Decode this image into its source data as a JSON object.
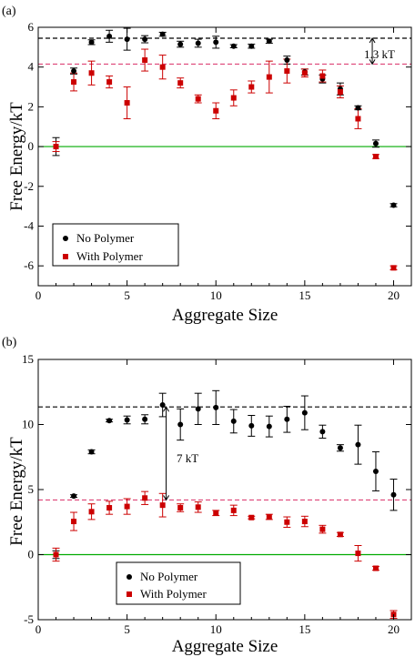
{
  "chart_data": [
    {
      "type": "scatter",
      "panel_label": "(a)",
      "xlabel": "Aggregate Size",
      "ylabel": "Free Energy/kT",
      "xlim": [
        0,
        21
      ],
      "ylim": [
        -7,
        6
      ],
      "xticks": [
        0,
        5,
        10,
        15,
        20
      ],
      "yticks": [
        -6,
        -4,
        -2,
        0,
        2,
        4,
        6
      ],
      "legend_position": "bottom-left",
      "series": [
        {
          "name": "No Polymer",
          "color": "#000000",
          "marker": "circle",
          "x": [
            1,
            2,
            3,
            4,
            5,
            6,
            7,
            8,
            9,
            10,
            11,
            12,
            13,
            14,
            15,
            16,
            17,
            18,
            19,
            20
          ],
          "y": [
            0.0,
            3.8,
            5.25,
            5.55,
            5.4,
            5.4,
            5.65,
            5.15,
            5.2,
            5.25,
            5.05,
            5.05,
            5.3,
            4.35,
            3.75,
            3.4,
            2.9,
            1.95,
            0.15,
            -2.95
          ],
          "err": [
            0.45,
            0.15,
            0.12,
            0.3,
            0.55,
            0.18,
            0.1,
            0.15,
            0.2,
            0.3,
            0.08,
            0.1,
            0.1,
            0.2,
            0.15,
            0.2,
            0.3,
            0.1,
            0.18,
            0.08
          ]
        },
        {
          "name": "With Polymer",
          "color": "#cc0000",
          "marker": "square",
          "x": [
            1,
            2,
            3,
            4,
            5,
            6,
            7,
            8,
            9,
            10,
            11,
            12,
            13,
            14,
            15,
            16,
            17,
            18,
            19,
            20
          ],
          "y": [
            0.0,
            3.25,
            3.7,
            3.25,
            2.2,
            4.35,
            4.0,
            3.2,
            2.4,
            1.8,
            2.45,
            3.0,
            3.5,
            3.8,
            3.7,
            3.55,
            2.75,
            1.4,
            -0.5,
            -6.1
          ],
          "err": [
            0.25,
            0.45,
            0.6,
            0.3,
            0.8,
            0.55,
            0.6,
            0.25,
            0.2,
            0.4,
            0.4,
            0.3,
            0.8,
            0.6,
            0.2,
            0.3,
            0.3,
            0.5,
            0.1,
            0.1
          ]
        }
      ],
      "reference_lines": [
        {
          "y": 5.45,
          "style": "dashed",
          "color": "#000000"
        },
        {
          "y": 4.15,
          "style": "dashed",
          "color": "#dd4477"
        },
        {
          "y": 0.0,
          "style": "solid",
          "color": "#00aa00"
        }
      ],
      "annotation": {
        "text": "1.3 kT",
        "x": 18.8,
        "y_from": 4.15,
        "y_to": 5.45
      }
    },
    {
      "type": "scatter",
      "panel_label": "(b)",
      "xlabel": "Aggregate Size",
      "ylabel": "Free Energy/kT",
      "xlim": [
        0,
        21
      ],
      "ylim": [
        -5,
        15
      ],
      "xticks": [
        0,
        5,
        10,
        15,
        20
      ],
      "yticks": [
        -5,
        0,
        5,
        10,
        15
      ],
      "legend_position": "bottom-center",
      "series": [
        {
          "name": "No Polymer",
          "color": "#000000",
          "marker": "circle",
          "x": [
            1,
            2,
            3,
            4,
            5,
            6,
            7,
            8,
            9,
            10,
            11,
            12,
            13,
            14,
            15,
            16,
            17,
            18,
            19,
            20
          ],
          "y": [
            0.0,
            4.5,
            7.9,
            10.3,
            10.35,
            10.4,
            11.5,
            10.0,
            11.2,
            11.3,
            10.25,
            9.9,
            9.85,
            10.4,
            10.9,
            9.45,
            8.2,
            8.45,
            6.4,
            4.6
          ],
          "err": [
            0.3,
            0.1,
            0.15,
            0.1,
            0.3,
            0.35,
            0.9,
            1.2,
            1.2,
            1.3,
            0.9,
            0.8,
            0.8,
            1.0,
            1.3,
            0.5,
            0.25,
            1.5,
            1.5,
            1.2
          ]
        },
        {
          "name": "With Polymer",
          "color": "#cc0000",
          "marker": "square",
          "x": [
            1,
            2,
            3,
            4,
            5,
            6,
            7,
            8,
            9,
            10,
            11,
            12,
            13,
            14,
            15,
            16,
            17,
            18,
            19,
            20
          ],
          "y": [
            0.0,
            2.55,
            3.3,
            3.6,
            3.7,
            4.35,
            3.8,
            3.6,
            3.65,
            3.2,
            3.4,
            2.85,
            2.9,
            2.5,
            2.55,
            1.95,
            1.55,
            0.1,
            -1.05,
            -4.6
          ],
          "err": [
            0.5,
            0.7,
            0.6,
            0.5,
            0.6,
            0.5,
            0.9,
            0.3,
            0.4,
            0.2,
            0.4,
            0.1,
            0.2,
            0.4,
            0.4,
            0.3,
            0.15,
            0.6,
            0.15,
            0.3
          ]
        }
      ],
      "reference_lines": [
        {
          "y": 11.35,
          "style": "dashed",
          "color": "#000000"
        },
        {
          "y": 4.2,
          "style": "dashed",
          "color": "#dd4477"
        },
        {
          "y": 0.0,
          "style": "solid",
          "color": "#00aa00"
        }
      ],
      "annotation": {
        "text": "7 kT",
        "x": 7.2,
        "y_from": 4.2,
        "y_to": 11.35
      }
    }
  ]
}
